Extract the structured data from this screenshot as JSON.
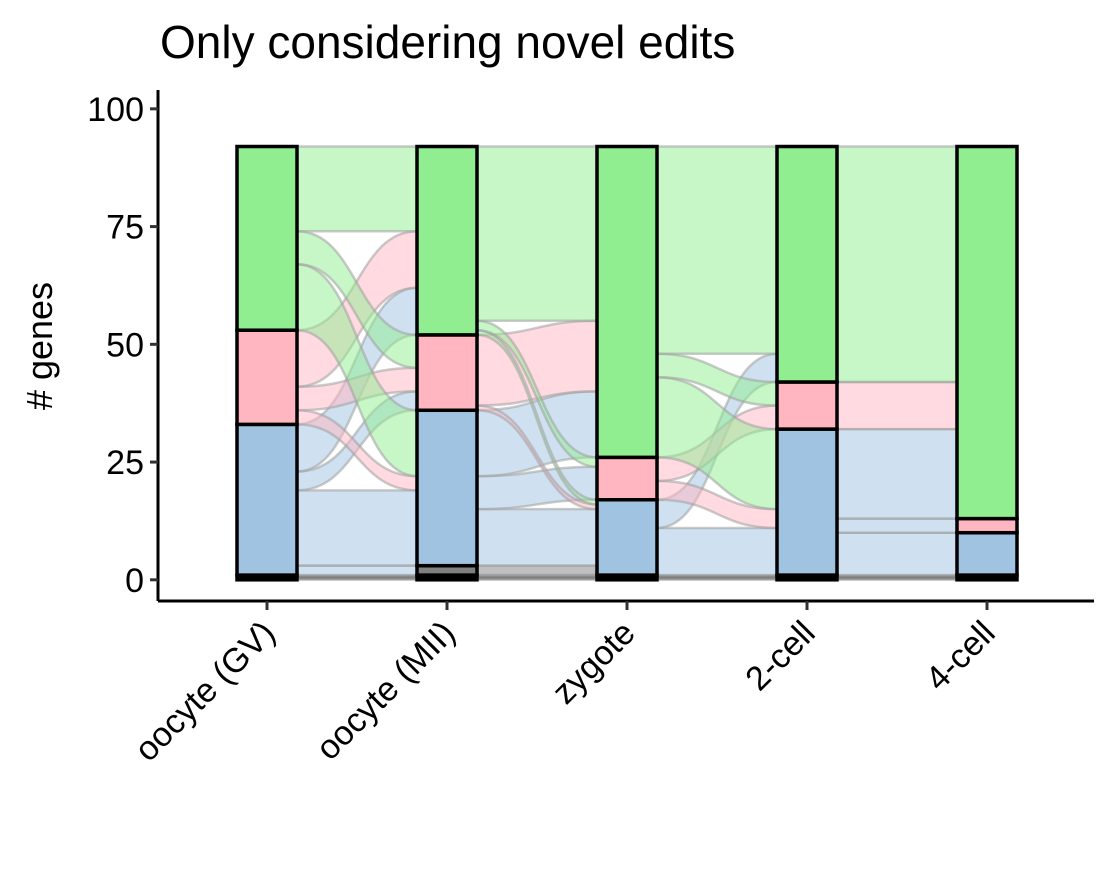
{
  "chart_data": {
    "type": "alluvial",
    "title": "Only considering novel edits",
    "ylabel": "# genes",
    "xlabel": "",
    "ylim": [
      -4.5,
      104
    ],
    "yticks": [
      0,
      25,
      50,
      75,
      100
    ],
    "grid": false,
    "legend": "none",
    "categories": [
      "oocyte (GV)",
      "oocyte (MII)",
      "zygote",
      "2-cell",
      "4-cell"
    ],
    "series": [
      {
        "color": "#000000",
        "values": [
          1,
          1,
          1,
          1,
          1
        ]
      },
      {
        "color": "#808080",
        "values": [
          0,
          2,
          0,
          0,
          0
        ]
      },
      {
        "color": "#9fc3e1",
        "values": [
          32,
          33,
          16,
          31,
          9
        ]
      },
      {
        "color": "#ffb6c1",
        "values": [
          20,
          16,
          9,
          10,
          3
        ]
      },
      {
        "color": "#90ee90",
        "values": [
          39,
          40,
          66,
          50,
          79
        ]
      }
    ],
    "flows": [
      [
        {
          "from": 0,
          "to": 0,
          "value": 1
        },
        {
          "from": 2,
          "to": 1,
          "value": 2
        },
        {
          "from": 2,
          "to": 2,
          "value": 16
        },
        {
          "from": 2,
          "to": 3,
          "value": 4
        },
        {
          "from": 2,
          "to": 4,
          "value": 10
        },
        {
          "from": 3,
          "to": 2,
          "value": 3
        },
        {
          "from": 3,
          "to": 3,
          "value": 5
        },
        {
          "from": 3,
          "to": 4,
          "value": 12
        },
        {
          "from": 4,
          "to": 2,
          "value": 14
        },
        {
          "from": 4,
          "to": 3,
          "value": 7
        },
        {
          "from": 4,
          "to": 4,
          "value": 18
        }
      ],
      [
        {
          "from": 0,
          "to": 0,
          "value": 1
        },
        {
          "from": 1,
          "to": 2,
          "value": 2
        },
        {
          "from": 2,
          "to": 2,
          "value": 12
        },
        {
          "from": 2,
          "to": 3,
          "value": 7
        },
        {
          "from": 2,
          "to": 4,
          "value": 14
        },
        {
          "from": 3,
          "to": 2,
          "value": 1
        },
        {
          "from": 3,
          "to": 4,
          "value": 15
        },
        {
          "from": 4,
          "to": 2,
          "value": 1
        },
        {
          "from": 4,
          "to": 3,
          "value": 2
        },
        {
          "from": 4,
          "to": 4,
          "value": 37
        }
      ],
      [
        {
          "from": 0,
          "to": 0,
          "value": 1
        },
        {
          "from": 2,
          "to": 2,
          "value": 10
        },
        {
          "from": 2,
          "to": 4,
          "value": 6
        },
        {
          "from": 3,
          "to": 2,
          "value": 4
        },
        {
          "from": 3,
          "to": 3,
          "value": 5
        },
        {
          "from": 4,
          "to": 2,
          "value": 17
        },
        {
          "from": 4,
          "to": 3,
          "value": 5
        },
        {
          "from": 4,
          "to": 4,
          "value": 44
        }
      ],
      [
        {
          "from": 0,
          "to": 0,
          "value": 1
        },
        {
          "from": 2,
          "to": 2,
          "value": 9
        },
        {
          "from": 2,
          "to": 3,
          "value": 3
        },
        {
          "from": 2,
          "to": 4,
          "value": 19
        },
        {
          "from": 3,
          "to": 4,
          "value": 10
        },
        {
          "from": 4,
          "to": 4,
          "value": 50
        }
      ]
    ]
  }
}
